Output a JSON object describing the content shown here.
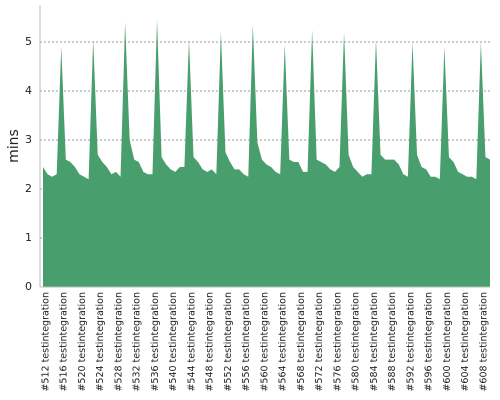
{
  "chart_data": {
    "type": "area",
    "y_label": "mins",
    "color": "#489e6d",
    "grid": true,
    "ylim": [
      0,
      5.8
    ],
    "yticks": [
      0,
      1,
      2,
      3,
      4,
      5
    ],
    "categories": [
      "#512 testintegration",
      null,
      null,
      null,
      "#516 testintegration",
      null,
      null,
      null,
      "#520 testintegration",
      null,
      null,
      null,
      "#524 testintegration",
      null,
      null,
      null,
      "#528 testintegration",
      null,
      null,
      null,
      "#532 testintegration",
      null,
      null,
      null,
      "#536 testintegration",
      null,
      null,
      null,
      "#540 testintegration",
      null,
      null,
      null,
      "#544 testintegration",
      null,
      null,
      null,
      "#548 testintegration",
      null,
      null,
      null,
      "#552 testintegration",
      null,
      null,
      null,
      "#556 testintegration",
      null,
      null,
      null,
      "#560 testintegration",
      null,
      null,
      null,
      "#564 testintegration",
      null,
      null,
      null,
      "#568 testintegration",
      null,
      null,
      null,
      "#572 testintegration",
      null,
      null,
      null,
      "#576 testintegration",
      null,
      null,
      null,
      "#580 testintegration",
      null,
      null,
      null,
      "#584 testintegration",
      null,
      null,
      null,
      "#588 testintegration",
      null,
      null,
      null,
      "#592 testintegration",
      null,
      null,
      null,
      "#596 testintegration",
      null,
      null,
      null,
      "#600 testintegration",
      null,
      null,
      null,
      "#604 testintegration",
      null,
      null,
      null,
      "#608 testintegration",
      null,
      null
    ],
    "values": [
      2.45,
      2.3,
      2.25,
      2.3,
      4.9,
      2.6,
      2.55,
      2.45,
      2.3,
      2.25,
      2.2,
      5.05,
      2.7,
      2.55,
      2.45,
      2.3,
      2.35,
      2.25,
      5.4,
      3.0,
      2.6,
      2.55,
      2.35,
      2.3,
      2.3,
      5.45,
      2.65,
      2.5,
      2.4,
      2.35,
      2.45,
      2.45,
      5.05,
      2.65,
      2.55,
      2.4,
      2.35,
      2.4,
      2.3,
      5.2,
      2.75,
      2.55,
      2.4,
      2.4,
      2.3,
      2.25,
      5.35,
      2.95,
      2.6,
      2.5,
      2.45,
      2.35,
      2.3,
      4.95,
      2.6,
      2.55,
      2.55,
      2.35,
      2.35,
      5.25,
      2.6,
      2.55,
      2.5,
      2.4,
      2.35,
      2.45,
      5.2,
      2.7,
      2.45,
      2.35,
      2.25,
      2.3,
      2.3,
      5.05,
      2.7,
      2.6,
      2.6,
      2.6,
      2.5,
      2.3,
      2.25,
      5.0,
      2.7,
      2.45,
      2.4,
      2.25,
      2.25,
      2.2,
      4.9,
      2.65,
      2.55,
      2.35,
      2.3,
      2.25,
      2.25,
      2.2,
      5.0,
      2.65,
      2.6
    ]
  }
}
